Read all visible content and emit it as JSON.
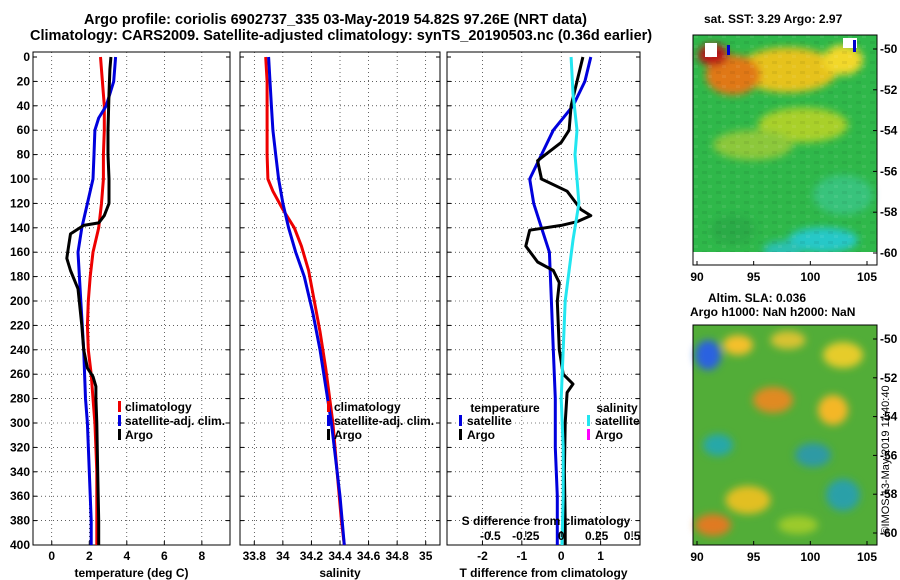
{
  "header": {
    "title_line1": "Argo profile: coriolis 6902737_335 03-May-2019 54.82S 97.26E (NRT data)",
    "title_line2": "Climatology: CARS2009. Satellite-adjusted climatology: synTS_20190503.nc (0.36d earlier)"
  },
  "colors": {
    "climatology": "#ee0000",
    "satellite": "#0000dd",
    "argo": "#000000",
    "salinity_satellite": "#22e6f0",
    "salinity_argo": "#ff00ff"
  },
  "chart_data": [
    {
      "type": "line",
      "panel": "temperature",
      "xlabel": "temperature (deg C)",
      "xlim": [
        -1,
        9.5
      ],
      "ylim": [
        400,
        0
      ],
      "xticks": [
        0,
        2,
        4,
        6,
        8
      ],
      "yticks": [
        0,
        20,
        40,
        60,
        80,
        100,
        120,
        140,
        160,
        180,
        200,
        220,
        240,
        260,
        280,
        300,
        320,
        340,
        360,
        380,
        400
      ],
      "legend": [
        "climatology",
        "satellite-adj. clim.",
        "Argo"
      ],
      "series": [
        {
          "name": "climatology",
          "color": "#ee0000",
          "points": [
            [
              2.6,
              0
            ],
            [
              2.7,
              20
            ],
            [
              2.8,
              40
            ],
            [
              2.8,
              60
            ],
            [
              2.75,
              80
            ],
            [
              2.75,
              100
            ],
            [
              2.65,
              120
            ],
            [
              2.5,
              140
            ],
            [
              2.2,
              160
            ],
            [
              2.05,
              180
            ],
            [
              1.95,
              200
            ],
            [
              1.9,
              220
            ],
            [
              1.95,
              240
            ],
            [
              2.1,
              260
            ],
            [
              2.2,
              280
            ],
            [
              2.3,
              300
            ],
            [
              2.35,
              320
            ],
            [
              2.4,
              340
            ],
            [
              2.4,
              360
            ],
            [
              2.4,
              380
            ],
            [
              2.4,
              400
            ]
          ]
        },
        {
          "name": "satellite-adj. clim.",
          "color": "#0000dd",
          "points": [
            [
              3.4,
              0
            ],
            [
              3.3,
              20
            ],
            [
              2.9,
              40
            ],
            [
              2.5,
              50
            ],
            [
              2.3,
              60
            ],
            [
              2.25,
              80
            ],
            [
              2.2,
              100
            ],
            [
              1.6,
              140
            ],
            [
              1.4,
              160
            ],
            [
              1.55,
              200
            ],
            [
              1.7,
              240
            ],
            [
              1.8,
              280
            ],
            [
              1.9,
              300
            ],
            [
              2.0,
              340
            ],
            [
              2.1,
              380
            ],
            [
              2.1,
              400
            ]
          ]
        },
        {
          "name": "Argo",
          "color": "#000000",
          "points": [
            [
              3.15,
              0
            ],
            [
              3.1,
              10
            ],
            [
              3.05,
              30
            ],
            [
              3.0,
              60
            ],
            [
              3.0,
              80
            ],
            [
              3.05,
              100
            ],
            [
              3.05,
              120
            ],
            [
              2.8,
              130
            ],
            [
              2.5,
              136
            ],
            [
              1.7,
              138
            ],
            [
              1.0,
              145
            ],
            [
              0.9,
              155
            ],
            [
              0.8,
              165
            ],
            [
              1.0,
              175
            ],
            [
              1.4,
              190
            ],
            [
              1.5,
              205
            ],
            [
              1.6,
              220
            ],
            [
              1.7,
              240
            ],
            [
              1.9,
              255
            ],
            [
              2.2,
              262
            ],
            [
              2.35,
              270
            ],
            [
              2.35,
              280
            ],
            [
              2.4,
              300
            ],
            [
              2.45,
              340
            ],
            [
              2.5,
              380
            ],
            [
              2.5,
              400
            ]
          ]
        }
      ]
    },
    {
      "type": "line",
      "panel": "salinity",
      "xlabel": "salinity",
      "xlim": [
        33.7,
        35.1
      ],
      "ylim": [
        400,
        0
      ],
      "xticks": [
        33.8,
        34,
        34.2,
        34.4,
        34.6,
        34.8,
        35
      ],
      "xticklabels": [
        "33.8",
        "34",
        "34.2",
        "34.4",
        "34.6",
        "34.8",
        "35"
      ],
      "legend": [
        "climatology",
        "satellite-adj. clim.",
        "Argo"
      ],
      "series": [
        {
          "name": "climatology",
          "color": "#ee0000",
          "points": [
            [
              33.88,
              0
            ],
            [
              33.89,
              20
            ],
            [
              33.89,
              40
            ],
            [
              33.89,
              60
            ],
            [
              33.89,
              80
            ],
            [
              33.895,
              100
            ],
            [
              33.93,
              110
            ],
            [
              34.0,
              125
            ],
            [
              34.08,
              140
            ],
            [
              34.13,
              155
            ],
            [
              34.18,
              175
            ],
            [
              34.22,
              200
            ],
            [
              34.26,
              225
            ],
            [
              34.3,
              255
            ],
            [
              34.35,
              300
            ],
            [
              34.38,
              340
            ],
            [
              34.41,
              380
            ],
            [
              34.43,
              400
            ]
          ]
        },
        {
          "name": "satellite-adj. clim.",
          "color": "#0000dd",
          "points": [
            [
              33.9,
              0
            ],
            [
              33.91,
              20
            ],
            [
              33.92,
              40
            ],
            [
              33.93,
              60
            ],
            [
              33.95,
              80
            ],
            [
              33.97,
              100
            ],
            [
              34.0,
              120
            ],
            [
              34.04,
              140
            ],
            [
              34.09,
              160
            ],
            [
              34.15,
              180
            ],
            [
              34.21,
              210
            ],
            [
              34.26,
              240
            ],
            [
              34.3,
              270
            ],
            [
              34.34,
              300
            ],
            [
              34.37,
              330
            ],
            [
              34.4,
              360
            ],
            [
              34.43,
              400
            ]
          ]
        }
      ]
    },
    {
      "type": "line",
      "panel": "difference",
      "xlabel": "T difference from climatology",
      "xlabel_top": "S difference from climatology",
      "xlim": [
        -2.9,
        2.0
      ],
      "ylim": [
        400,
        0
      ],
      "xticks": [
        -2,
        -1,
        0,
        1
      ],
      "xticklabels": [
        "-2",
        "-1",
        "0",
        "1"
      ],
      "sxticks": [
        -1.8,
        -0.9,
        0.0,
        0.9,
        1.8
      ],
      "sxticklabels": [
        "-0.5",
        "-0.25",
        "0",
        "0.25",
        "0.5"
      ],
      "legend_temperature_title": "temperature",
      "legend_salinity_title": "salinity",
      "legend_temperature": [
        "satellite",
        "Argo"
      ],
      "legend_salinity": [
        "satellite",
        "Argo"
      ],
      "series": [
        {
          "name": "T satellite",
          "color": "#0000dd",
          "points": [
            [
              0.75,
              0
            ],
            [
              0.6,
              20
            ],
            [
              0.3,
              40
            ],
            [
              -0.2,
              60
            ],
            [
              -0.5,
              80
            ],
            [
              -0.8,
              100
            ],
            [
              -0.7,
              120
            ],
            [
              -0.5,
              140
            ],
            [
              -0.3,
              160
            ],
            [
              -0.25,
              200
            ],
            [
              -0.2,
              240
            ],
            [
              -0.15,
              280
            ],
            [
              -0.15,
              320
            ],
            [
              -0.1,
              360
            ],
            [
              -0.1,
              400
            ]
          ]
        },
        {
          "name": "T Argo",
          "color": "#000000",
          "points": [
            [
              0.55,
              0
            ],
            [
              0.4,
              20
            ],
            [
              0.25,
              40
            ],
            [
              0.2,
              60
            ],
            [
              0.0,
              70
            ],
            [
              -0.6,
              85
            ],
            [
              -0.5,
              100
            ],
            [
              0.15,
              110
            ],
            [
              0.5,
              125
            ],
            [
              0.75,
              130
            ],
            [
              0.4,
              135
            ],
            [
              0.0,
              138
            ],
            [
              -0.8,
              142
            ],
            [
              -0.9,
              155
            ],
            [
              -0.6,
              168
            ],
            [
              -0.2,
              175
            ],
            [
              -0.05,
              185
            ],
            [
              -0.1,
              200
            ],
            [
              -0.05,
              240
            ],
            [
              0.05,
              260
            ],
            [
              0.3,
              268
            ],
            [
              0.15,
              275
            ],
            [
              0.1,
              300
            ],
            [
              0.08,
              340
            ],
            [
              0.1,
              380
            ],
            [
              0.1,
              400
            ]
          ]
        },
        {
          "name": "S satellite",
          "color": "#22e6f0",
          "points": [
            [
              0.25,
              0
            ],
            [
              0.3,
              30
            ],
            [
              0.4,
              60
            ],
            [
              0.35,
              80
            ],
            [
              0.4,
              100
            ],
            [
              0.45,
              120
            ],
            [
              0.3,
              150
            ],
            [
              0.1,
              200
            ],
            [
              0.05,
              240
            ],
            [
              0.0,
              280
            ],
            [
              0.05,
              320
            ],
            [
              0.05,
              360
            ],
            [
              0.02,
              400
            ]
          ]
        }
      ]
    }
  ],
  "maps": {
    "sst": {
      "title": "sat. SST: 3.29 Argo: 2.97",
      "xticks": [
        "90",
        "95",
        "100",
        "105"
      ],
      "yticks": [
        "-50",
        "-52",
        "-54",
        "-56",
        "-58",
        "-60"
      ]
    },
    "sla": {
      "title1": "Altim. SLA: 0.036",
      "title2": "Argo h1000: NaN h2000: NaN",
      "xticks": [
        "90",
        "95",
        "100",
        "105"
      ],
      "yticks": [
        "-50",
        "-52",
        "-54",
        "-56",
        "-58",
        "-60"
      ]
    },
    "credit": "©IMOS 13-May-2019 11:40:40"
  }
}
